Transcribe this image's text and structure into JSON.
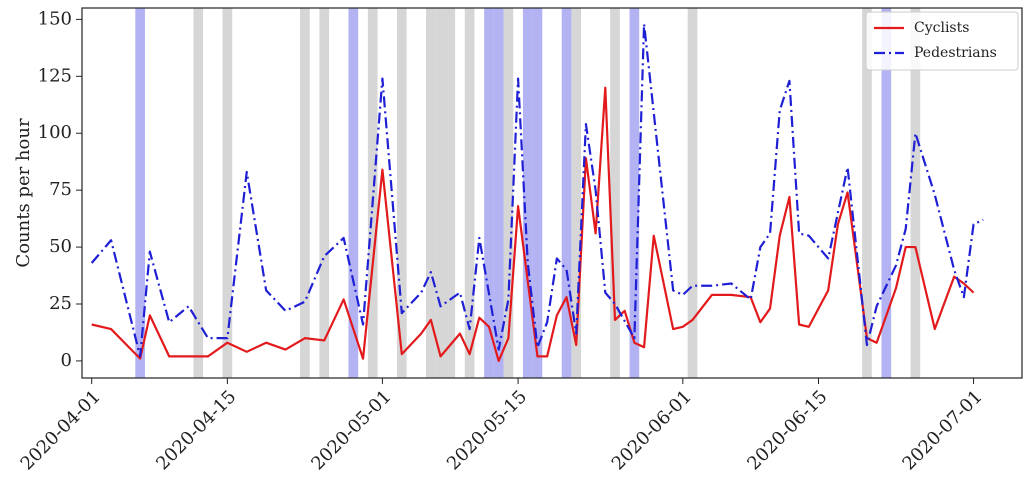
{
  "chart_data": {
    "type": "line",
    "y_label": "Counts per hour",
    "xlim": [
      "2020-03-31",
      "2020-07-06"
    ],
    "ylim": [
      -7.5,
      155
    ],
    "xticks": [
      "2020-04-01",
      "2020-04-15",
      "2020-05-01",
      "2020-05-15",
      "2020-06-01",
      "2020-06-15",
      "2020-07-01"
    ],
    "yticks": [
      0,
      25,
      50,
      75,
      100,
      125,
      150
    ],
    "legend": "upper right",
    "bands": [
      {
        "color": "#c8c8c8",
        "dates": [
          "2020-04-12",
          "2020-04-15",
          "2020-04-23",
          "2020-04-25",
          "2020-04-30",
          "2020-05-03",
          "2020-05-06",
          "2020-05-07",
          "2020-05-08",
          "2020-05-10",
          "2020-05-14",
          "2020-05-21",
          "2020-05-25",
          "2020-06-02",
          "2020-06-20",
          "2020-06-25"
        ]
      },
      {
        "color": "#9a9af0",
        "dates": [
          "2020-04-06",
          "2020-04-28",
          "2020-05-12",
          "2020-05-13",
          "2020-05-16",
          "2020-05-17",
          "2020-05-20",
          "2020-05-27",
          "2020-06-22"
        ]
      }
    ],
    "series": [
      {
        "name": "Cyclists",
        "color": "#e31a1c",
        "dash": "solid",
        "x": [
          "2020-04-01",
          "2020-04-03",
          "2020-04-06",
          "2020-04-07",
          "2020-04-09",
          "2020-04-11",
          "2020-04-13",
          "2020-04-15",
          "2020-04-17",
          "2020-04-19",
          "2020-04-21",
          "2020-04-23",
          "2020-04-25",
          "2020-04-27",
          "2020-04-29",
          "2020-05-01",
          "2020-05-03",
          "2020-05-05",
          "2020-05-06",
          "2020-05-07",
          "2020-05-09",
          "2020-05-10",
          "2020-05-11",
          "2020-05-12",
          "2020-05-13",
          "2020-05-14",
          "2020-05-15",
          "2020-05-16",
          "2020-05-17",
          "2020-05-18",
          "2020-05-19",
          "2020-05-20",
          "2020-05-21",
          "2020-05-22",
          "2020-05-23",
          "2020-05-24",
          "2020-05-25",
          "2020-05-26",
          "2020-05-27",
          "2020-05-28",
          "2020-05-29",
          "2020-05-31",
          "2020-06-01",
          "2020-06-02",
          "2020-06-04",
          "2020-06-06",
          "2020-06-08",
          "2020-06-09",
          "2020-06-10",
          "2020-06-11",
          "2020-06-12",
          "2020-06-13",
          "2020-06-14",
          "2020-06-16",
          "2020-06-17",
          "2020-06-18",
          "2020-06-20",
          "2020-06-21",
          "2020-06-23",
          "2020-06-24",
          "2020-06-25",
          "2020-06-27",
          "2020-06-29",
          "2020-06-30",
          "2020-07-01"
        ],
        "values": [
          16,
          14,
          1,
          20,
          2,
          2,
          2,
          8,
          4,
          8,
          5,
          10,
          9,
          27,
          1,
          84,
          3,
          12,
          18,
          2,
          12,
          3,
          19,
          15,
          0,
          10,
          68,
          35,
          2,
          2,
          20,
          28,
          7,
          89,
          56,
          120,
          18,
          22,
          8,
          6,
          55,
          14,
          15,
          18,
          29,
          29,
          28,
          17,
          23,
          55,
          72,
          16,
          15,
          31,
          60,
          74,
          10,
          8,
          32,
          50,
          50,
          14,
          37,
          34,
          30
        ]
      },
      {
        "name": "Pedestrians",
        "color": "#1f1fd6",
        "dash": "dashdot",
        "x": [
          "2020-04-01",
          "2020-04-03",
          "2020-04-06",
          "2020-04-07",
          "2020-04-09",
          "2020-04-11",
          "2020-04-13",
          "2020-04-15",
          "2020-04-17",
          "2020-04-19",
          "2020-04-21",
          "2020-04-23",
          "2020-04-25",
          "2020-04-27",
          "2020-04-29",
          "2020-05-01",
          "2020-05-03",
          "2020-05-05",
          "2020-05-06",
          "2020-05-07",
          "2020-05-09",
          "2020-05-10",
          "2020-05-11",
          "2020-05-13",
          "2020-05-14",
          "2020-05-15",
          "2020-05-16",
          "2020-05-17",
          "2020-05-18",
          "2020-05-19",
          "2020-05-20",
          "2020-05-21",
          "2020-05-22",
          "2020-05-23",
          "2020-05-24",
          "2020-05-25",
          "2020-05-27",
          "2020-05-28",
          "2020-05-31",
          "2020-06-01",
          "2020-06-02",
          "2020-06-04",
          "2020-06-06",
          "2020-06-08",
          "2020-06-09",
          "2020-06-10",
          "2020-06-11",
          "2020-06-12",
          "2020-06-13",
          "2020-06-14",
          "2020-06-16",
          "2020-06-18",
          "2020-06-20",
          "2020-06-21",
          "2020-06-23",
          "2020-06-24",
          "2020-06-25",
          "2020-06-27",
          "2020-06-29",
          "2020-06-30",
          "2020-07-01",
          "2020-07-02"
        ],
        "values": [
          43,
          53,
          2,
          48,
          17,
          24,
          10,
          10,
          83,
          31,
          22,
          26,
          46,
          54,
          16,
          124,
          21,
          30,
          39,
          24,
          30,
          14,
          54,
          5,
          27,
          124,
          43,
          6,
          17,
          45,
          40,
          12,
          104,
          75,
          30,
          25,
          10,
          148,
          31,
          29,
          33,
          33,
          34,
          27,
          50,
          56,
          110,
          123,
          56,
          55,
          45,
          85,
          7,
          24,
          42,
          58,
          100,
          73,
          40,
          28,
          60,
          62
        ]
      }
    ]
  }
}
